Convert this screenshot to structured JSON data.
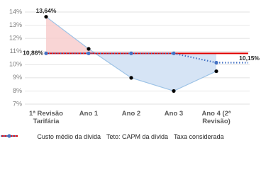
{
  "chart_data": {
    "type": "line",
    "categories": [
      "1ª Revisão Tarifária",
      "Ano 1",
      "Ano 2",
      "Ano 3",
      "Ano 4 (2ª Revisão)"
    ],
    "series": [
      {
        "name": "Custo médio da dívida",
        "color": "#9dc3e6",
        "marker_color": "#000000",
        "values": [
          13.64,
          11.2,
          9.0,
          8.0,
          9.5
        ],
        "value_labels": [
          "13,64%",
          null,
          null,
          null,
          null
        ]
      },
      {
        "name": "Teto: CAPM da dívida",
        "color": "#e00000",
        "values": [
          10.86,
          10.86,
          10.86,
          10.86,
          10.86
        ],
        "value_labels": [
          "10,86%",
          null,
          null,
          null,
          null
        ]
      },
      {
        "name": "Taxa considerada",
        "color": "#4472c4",
        "dashed": true,
        "values": [
          10.86,
          10.86,
          10.86,
          10.86,
          10.15
        ],
        "value_labels": [
          null,
          null,
          null,
          null,
          "10,15%"
        ]
      }
    ],
    "ylim": [
      7,
      14
    ],
    "yticks": [
      {
        "value": 7,
        "label": "7%"
      },
      {
        "value": 8,
        "label": "8%"
      },
      {
        "value": 9,
        "label": "9%"
      },
      {
        "value": 10,
        "label": "10%"
      },
      {
        "value": 11,
        "label": "11%"
      },
      {
        "value": 12,
        "label": "12%"
      },
      {
        "value": 13,
        "label": "13%"
      },
      {
        "value": 14,
        "label": "14%"
      }
    ],
    "grid": true,
    "legend": "bottom"
  }
}
